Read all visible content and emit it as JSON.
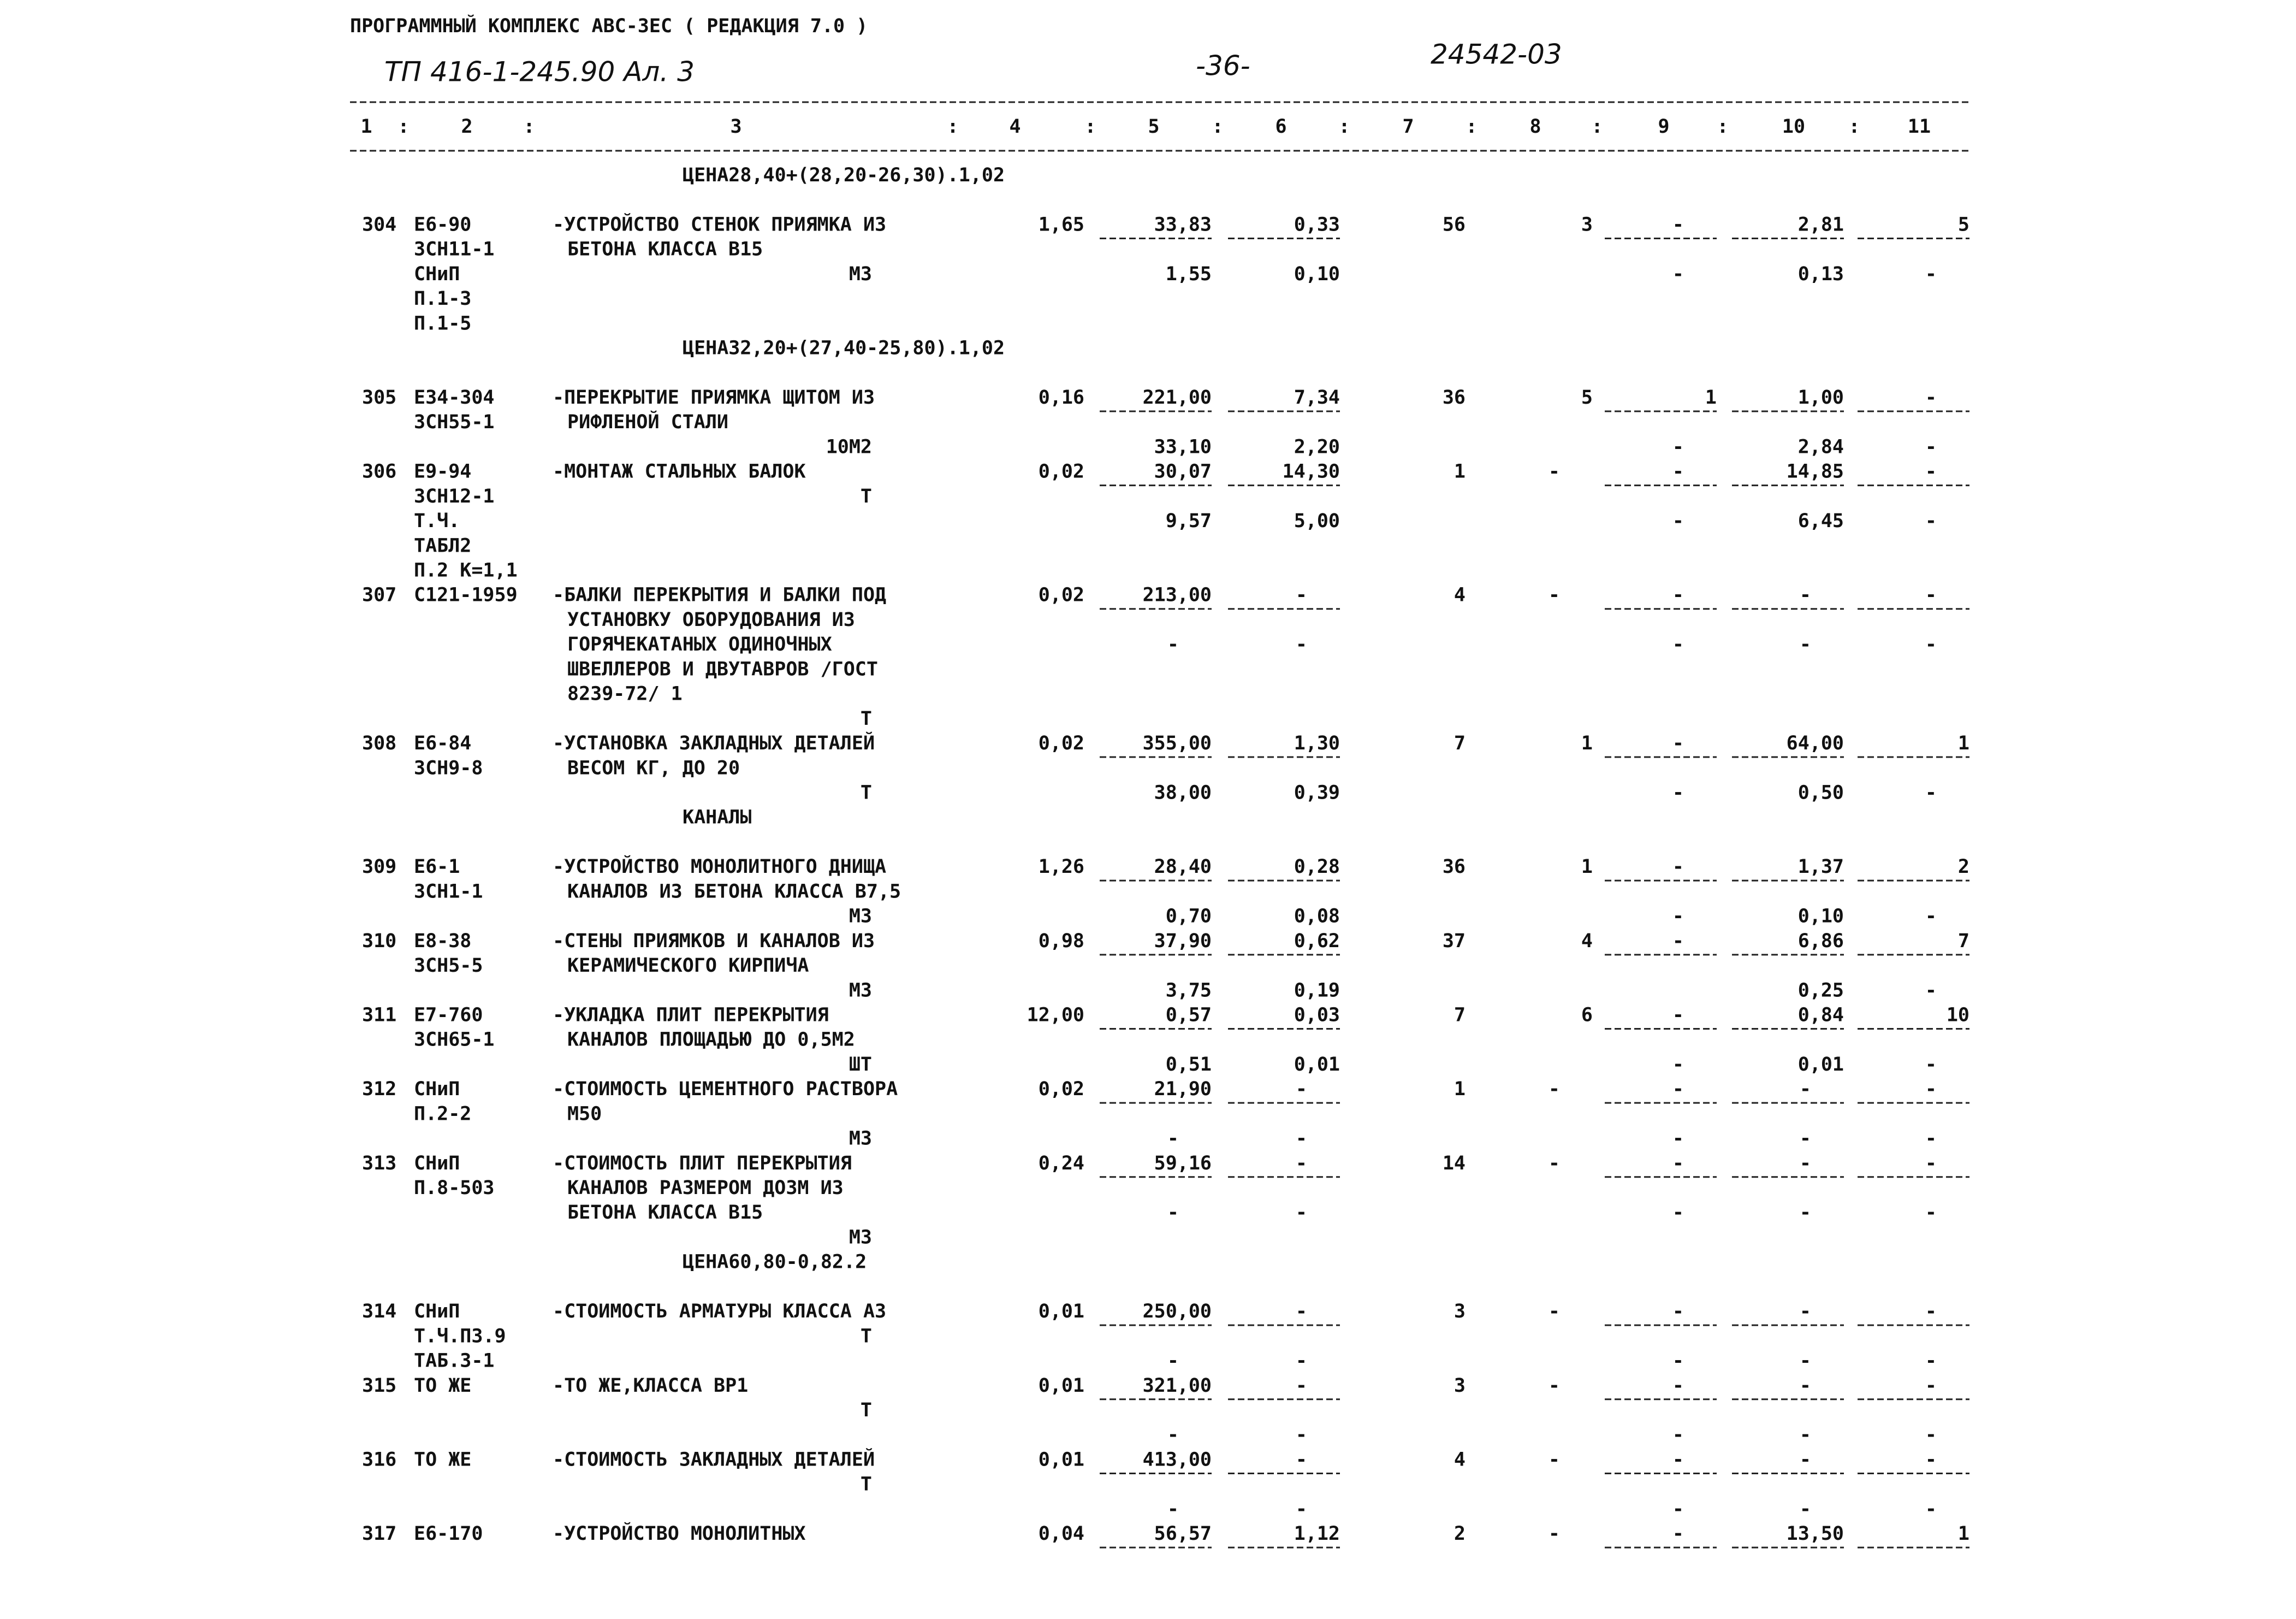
{
  "header": {
    "program": "ПРОГРАММНЫЙ КОМПЛЕКС АВС-ЗЕС  ( РЕДАКЦИЯ  7.0 )",
    "doc_code": "ТП 416-1-245.90 Ал. 3",
    "page": "-36-",
    "stamp": "24542-03"
  },
  "columns": {
    "labels": [
      "1",
      "2",
      "3",
      "4",
      "5",
      "6",
      "7",
      "8",
      "9",
      "10",
      "11"
    ],
    "separator": ":"
  },
  "lines": [
    {
      "note": "ЦЕНА28,40+(28,20-26,30).1,02"
    },
    {
      "num": "304",
      "code": "Е6-90",
      "desc": "-УСТРОЙСТВО СТЕНОК ПРИЯМКА ИЗ",
      "c4": "1,65",
      "c5": "33,83",
      "c6": "0,33",
      "c7": "56",
      "c8": "3",
      "c9": "-",
      "c10": "2,81",
      "c11": "5"
    },
    {
      "code": "ЗСН11-1",
      "text": "БЕТОНА КЛАССА В15"
    },
    {
      "code": "СНиП",
      "unit": "М3",
      "c5": "1,55",
      "c6": "0,10",
      "c9": "-",
      "c10": "0,13",
      "c11": "-"
    },
    {
      "code": "П.1-3"
    },
    {
      "code": "П.1-5"
    },
    {
      "note": "ЦЕНА32,20+(27,40-25,80).1,02"
    },
    {
      "num": "305",
      "code": "Е34-304",
      "desc": "-ПЕРЕКРЫТИЕ ПРИЯМКА ЩИТОМ ИЗ",
      "c4": "0,16",
      "c5": "221,00",
      "c6": "7,34",
      "c7": "36",
      "c8": "5",
      "c9": "1",
      "c10": "1,00",
      "c11": "-"
    },
    {
      "code": "ЗСН55-1",
      "text": "РИФЛЕНОЙ СТАЛИ"
    },
    {
      "unit": "10М2",
      "c5": "33,10",
      "c6": "2,20",
      "c9": "-",
      "c10": "2,84",
      "c11": "-"
    },
    {
      "num": "306",
      "code": "Е9-94",
      "desc": "-МОНТАЖ СТАЛЬНЫХ БАЛОК",
      "c4": "0,02",
      "c5": "30,07",
      "c6": "14,30",
      "c7": "1",
      "c8": "-",
      "c9": "-",
      "c10": "14,85",
      "c11": "-"
    },
    {
      "code": "ЗСН12-1",
      "unit": "Т"
    },
    {
      "code": "Т.Ч.",
      "c5": "9,57",
      "c6": "5,00",
      "c9": "-",
      "c10": "6,45",
      "c11": "-"
    },
    {
      "code": "ТАБЛ2"
    },
    {
      "code": "П.2 К=1,1"
    },
    {
      "num": "307",
      "code": "С121-1959",
      "desc": "-БАЛКИ ПЕРЕКРЫТИЯ И БАЛКИ ПОД",
      "c4": "0,02",
      "c5": "213,00",
      "c6": "-",
      "c7": "4",
      "c8": "-",
      "c9": "-",
      "c10": "-",
      "c11": "-"
    },
    {
      "text": "УСТАНОВКУ ОБОРУДОВАНИЯ ИЗ"
    },
    {
      "text": "ГОРЯЧЕКАТАНЫХ ОДИНОЧНЫХ",
      "c5": "-",
      "c6": "-",
      "c9": "-",
      "c10": "-",
      "c11": "-"
    },
    {
      "text": "ШВЕЛЛЕРОВ И ДВУТАВРОВ /ГОСТ"
    },
    {
      "text": "8239-72/ 1"
    },
    {
      "unit": "Т"
    },
    {
      "num": "308",
      "code": "Е6-84",
      "desc": "-УСТАНОВКА ЗАКЛАДНЫХ ДЕТАЛЕЙ",
      "c4": "0,02",
      "c5": "355,00",
      "c6": "1,30",
      "c7": "7",
      "c8": "1",
      "c9": "-",
      "c10": "64,00",
      "c11": "1"
    },
    {
      "code": "ЗСН9-8",
      "text": "ВЕСОМ КГ, ДО 20"
    },
    {
      "unit": "Т",
      "c5": "38,00",
      "c6": "0,39",
      "c9": "-",
      "c10": "0,50",
      "c11": "-"
    },
    {
      "note": "КАНАЛЫ"
    },
    {
      "num": "309",
      "code": "Е6-1",
      "desc": "-УСТРОЙСТВО МОНОЛИТНОГО ДНИЩА",
      "c4": "1,26",
      "c5": "28,40",
      "c6": "0,28",
      "c7": "36",
      "c8": "1",
      "c9": "-",
      "c10": "1,37",
      "c11": "2"
    },
    {
      "code": "ЗСН1-1",
      "text": "КАНАЛОВ ИЗ БЕТОНА КЛАССА В7,5"
    },
    {
      "unit": "М3",
      "c5": "0,70",
      "c6": "0,08",
      "c9": "-",
      "c10": "0,10",
      "c11": "-"
    },
    {
      "num": "310",
      "code": "Е8-38",
      "desc": "-СТЕНЫ ПРИЯМКОВ И КАНАЛОВ ИЗ",
      "c4": "0,98",
      "c5": "37,90",
      "c6": "0,62",
      "c7": "37",
      "c8": "4",
      "c9": "-",
      "c10": "6,86",
      "c11": "7"
    },
    {
      "code": "ЗСН5-5",
      "text": "КЕРАМИЧЕСКОГО КИРПИЧА"
    },
    {
      "unit": "М3",
      "c5": "3,75",
      "c6": "0,19",
      "c10": "0,25",
      "c11": "-"
    },
    {
      "num": "311",
      "code": "Е7-760",
      "desc": "-УКЛАДКА ПЛИТ ПЕРЕКРЫТИЯ",
      "c4": "12,00",
      "c5": "0,57",
      "c6": "0,03",
      "c7": "7",
      "c8": "6",
      "c9": "-",
      "c10": "0,84",
      "c11": "10"
    },
    {
      "code": "ЗСН65-1",
      "text": "КАНАЛОВ ПЛОЩАДЬЮ ДО 0,5М2"
    },
    {
      "unit": "ШТ",
      "c5": "0,51",
      "c6": "0,01",
      "c9": "-",
      "c10": "0,01",
      "c11": "-"
    },
    {
      "num": "312",
      "code": "СНиП",
      "desc": "-СТОИМОСТЬ ЦЕМЕНТНОГО РАСТВОРА",
      "c4": "0,02",
      "c5": "21,90",
      "c6": "-",
      "c7": "1",
      "c8": "-",
      "c9": "-",
      "c10": "-",
      "c11": "-"
    },
    {
      "code": "П.2-2",
      "text": "М50"
    },
    {
      "unit": "М3",
      "c5": "-",
      "c6": "-",
      "c9": "-",
      "c10": "-",
      "c11": "-"
    },
    {
      "num": "313",
      "code": "СНиП",
      "desc": "-СТОИМОСТЬ ПЛИТ ПЕРЕКРЫТИЯ",
      "c4": "0,24",
      "c5": "59,16",
      "c6": "-",
      "c7": "14",
      "c8": "-",
      "c9": "-",
      "c10": "-",
      "c11": "-"
    },
    {
      "code": "П.8-503",
      "text": "КАНАЛОВ РАЗМЕРОМ ДОЗМ ИЗ"
    },
    {
      "text": "БЕТОНА КЛАССА В15",
      "c5": "-",
      "c6": "-",
      "c9": "-",
      "c10": "-",
      "c11": "-"
    },
    {
      "unit": "М3"
    },
    {
      "note": "ЦЕНА60,80-0,82.2"
    },
    {
      "num": "314",
      "code": "СНиП",
      "desc": "-СТОИМОСТЬ АРМАТУРЫ КЛАССА А3",
      "c4": "0,01",
      "c5": "250,00",
      "c6": "-",
      "c7": "3",
      "c8": "-",
      "c9": "-",
      "c10": "-",
      "c11": "-"
    },
    {
      "code": "Т.Ч.П3.9",
      "unit": "Т"
    },
    {
      "code": "ТАБ.3-1",
      "c5": "-",
      "c6": "-",
      "c9": "-",
      "c10": "-",
      "c11": "-"
    },
    {
      "num": "315",
      "code": "ТО ЖЕ",
      "desc": "-ТО ЖЕ,КЛАССА ВР1",
      "c4": "0,01",
      "c5": "321,00",
      "c6": "-",
      "c7": "3",
      "c8": "-",
      "c9": "-",
      "c10": "-",
      "c11": "-"
    },
    {
      "unit": "Т"
    },
    {
      "c5": "-",
      "c6": "-",
      "c9": "-",
      "c10": "-",
      "c11": "-"
    },
    {
      "num": "316",
      "code": "ТО ЖЕ",
      "desc": "-СТОИМОСТЬ ЗАКЛАДНЫХ ДЕТАЛЕЙ",
      "c4": "0,01",
      "c5": "413,00",
      "c6": "-",
      "c7": "4",
      "c8": "-",
      "c9": "-",
      "c10": "-",
      "c11": "-"
    },
    {
      "unit": "Т"
    },
    {
      "c5": "-",
      "c6": "-",
      "c9": "-",
      "c10": "-",
      "c11": "-"
    },
    {
      "num": "317",
      "code": "Е6-170",
      "desc": "-УСТРОЙСТВО МОНОЛИТНЫХ",
      "c4": "0,04",
      "c5": "56,57",
      "c6": "1,12",
      "c7": "2",
      "c8": "-",
      "c9": "-",
      "c10": "13,50",
      "c11": "1"
    }
  ]
}
